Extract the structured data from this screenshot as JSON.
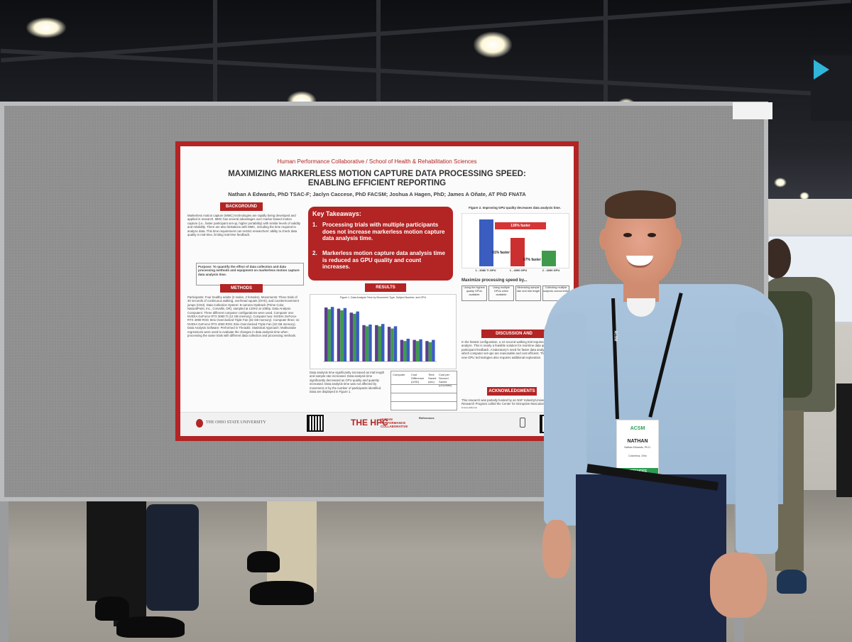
{
  "poster": {
    "institution": "Human Performance Collaborative / School of Health & Rehabilitation Sciences",
    "title_line1": "MAXIMIZING MARKERLESS MOTION CAPTURE DATA PROCESSING SPEED:",
    "title_line2": "ENABLING EFFICIENT REPORTING",
    "authors": "Nathan A Edwards, PhD TSAC-F; Jaclyn Caccese, PhD FACSM; Joshua A Hagen, PhD; James A Oñate, AT PhD FNATA",
    "sections": {
      "background": "BACKGROUND",
      "methods": "METHODS",
      "results": "RESULTS",
      "discussion": "DISCUSSION AND CONCLUSIONS",
      "acknowledgments": "ACKNOWLEDGMENTS"
    },
    "background_text": "Markerless motion capture (MMC) technologies are rapidly being developed and applied in research. MMC has several advantages over marker-based motion capture (i.e., faster participant set-up, higher portability) with similar levels of validity and reliability. There are also limitations with MMC, including the time required to analyze data. This time requirement can restrict researchers' ability to check data quality in real-time, limiting real-time feedback.",
    "purpose": "Purpose: To quantify the effect of data collection and data processing methods and equipment on markerless motion capture data analysis time.",
    "methods_text": "Participants: Four healthy adults (2 males, 2 females). Movements: Three trials of 30 seconds of continuous walking, overhead squats (OHS), and countermovement jumps (CMJ). Data Collection System: 8-camera Optitrack (Prime Color, NaturalPoint, Inc., Corvallis, OR), sampled at 120Hz at 1080p. Data Analysis Computers: Three different computer configurations were used. Computer one: NVIDIA GeForce RTX 3080 Ti (12 GB memory). Computer two: NVIDIA GeForce RTX 4090 ROG Strix Overclocked Triple Fan (32 GB memory). Computer three: 2x NVIDIA GeForce RTX 4090 ROG Strix Overclocked Triple Fan (32 GB memory). Data Analysis Software: Performed in Theia3D. Statistical Approach: Multivariate regressions were used to evaluate the changes in data analysis time when processing the same trials with different data collection and processing methods.",
    "key_takeaways": {
      "heading": "Key Takeaways:",
      "item1": "Processing trials with multiple participants does not increase markerless motion capture data analysis time.",
      "item2": "Markerless motion capture data analysis time is reduced as GPU quality and count increases."
    },
    "results_caption": "Data analysis time significantly increased as trial length and sample rate increased. Data analysis time significantly decreased as GPU quality and quantity increased. Data analysis time was not affected by movement or by the number of participants identified. Data are displayed in Figure 1.",
    "figure1_title": "Figure 1. Data Analysis Time by Movement Type, Subject Number, and GPU",
    "figure2_title": "Figure 2. Improving GPU quality decreases data analysis time.",
    "figure2_labels": [
      "136% faster",
      "41% faster",
      "67% faster"
    ],
    "figure2_gpus": [
      "1 - 3080 Ti GPU",
      "1 - 4090 GPU",
      "2 - 4090 GPU"
    ],
    "maximize_heading": "Maximize processing speed by...",
    "maximize_items": [
      "Using the highest quality GPUs available",
      "Using multiple GPUs when available",
      "Minimizing sample rate and trial length",
      "Collecting multiple subjects concurrently"
    ],
    "discussion_text": "In the fastest configuration, a 10 second walking trial required 65 seconds to analyze. This is nearly a feasible solution for real-time data quality control and participant feedback. A laboratory's need for faster data analysis should inform which computer set-ups are reasonable and cost efficient. The development of new GPU technologies also requires additional exploration.",
    "ack_text": "This research was partially funded by an NSF Industry/University Cooperative Research Program called the Center for Disruptive Musculoskeletal Innovations.",
    "table_headers": [
      "Computer",
      "Cost Difference (USD)",
      "Time Saved (sec)",
      "Cost per Second Saved (USD/sec)"
    ],
    "footer_university": "THE OHIO STATE UNIVERSITY",
    "footer_hpc": "THE HPC",
    "footer_hpc_sub": "HUMAN PERFORMANCE COLLABORATIVE",
    "footer_refs": "References"
  },
  "badge": {
    "name": "NATHAN",
    "fullname": "Nathan Edwards, Ph.D.",
    "city": "Columbus, Ohio",
    "role": "ATTENDEE",
    "logo": "ACSM"
  },
  "lanyard_text": "ACSM",
  "colors": {
    "poster_red": "#b32424",
    "chart_purple": "#5b3e8f",
    "chart_green": "#3f9b4b",
    "chart_blue": "#3a5dbf",
    "chart_red": "#cc2f2f"
  },
  "chart_data": {
    "type": "bar",
    "title": "Figure 1. Data Analysis Time by Movement Type, Subject Number, and GPU",
    "categories": [
      "1",
      "2",
      "3",
      "4",
      "5",
      "6",
      "7",
      "8",
      "9"
    ],
    "series": [
      {
        "values": [
          95,
          93,
          86,
          64,
          64,
          61,
          38,
          38,
          36
        ]
      },
      {
        "values": [
          92,
          90,
          84,
          62,
          62,
          58,
          36,
          36,
          34
        ]
      },
      {
        "values": [
          96,
          94,
          88,
          65,
          66,
          62,
          40,
          39,
          38
        ]
      }
    ],
    "ylim": [
      0,
      100
    ]
  }
}
